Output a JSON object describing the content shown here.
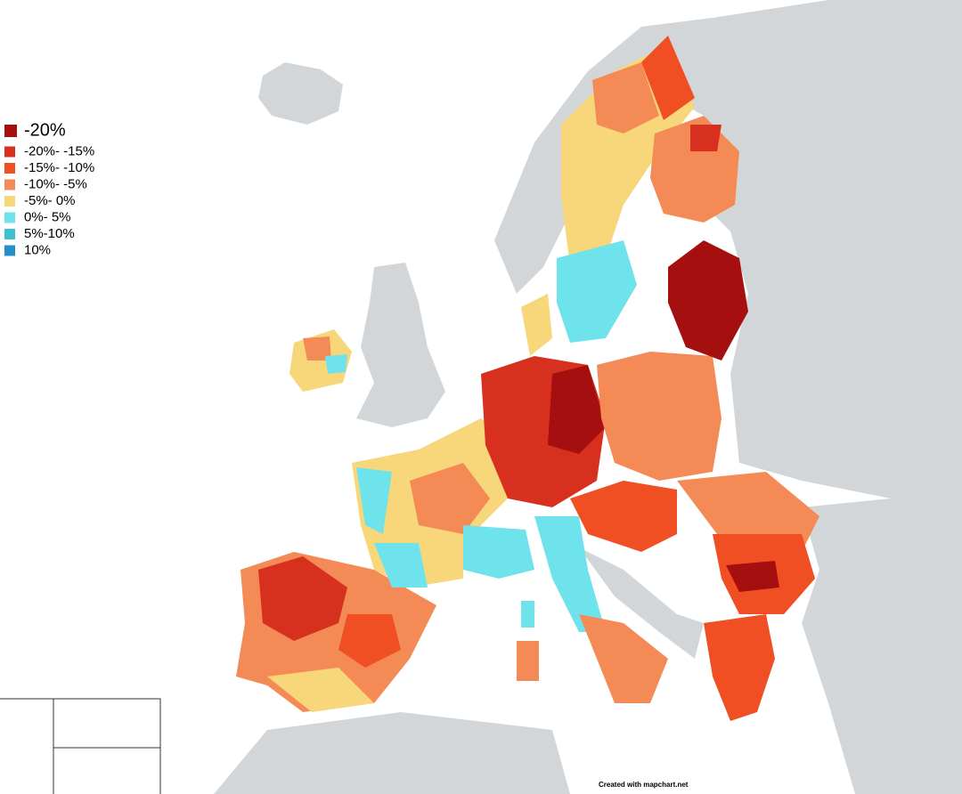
{
  "legend": {
    "items": [
      {
        "label": "-20%",
        "color": "#a50f0f"
      },
      {
        "label": "-20%- -15%",
        "color": "#d7301f"
      },
      {
        "label": "-15%- -10%",
        "color": "#f04e23"
      },
      {
        "label": "-10%- -5%",
        "color": "#f48a55"
      },
      {
        "label": "-5%- 0%",
        "color": "#f7d77a"
      },
      {
        "label": "0%- 5%",
        "color": "#6ee3ec"
      },
      {
        "label": "5%-10%",
        "color": "#40bfd0"
      },
      {
        "label": "10%",
        "color": "#2390c8"
      }
    ]
  },
  "credit": "Created with mapchart.net"
}
